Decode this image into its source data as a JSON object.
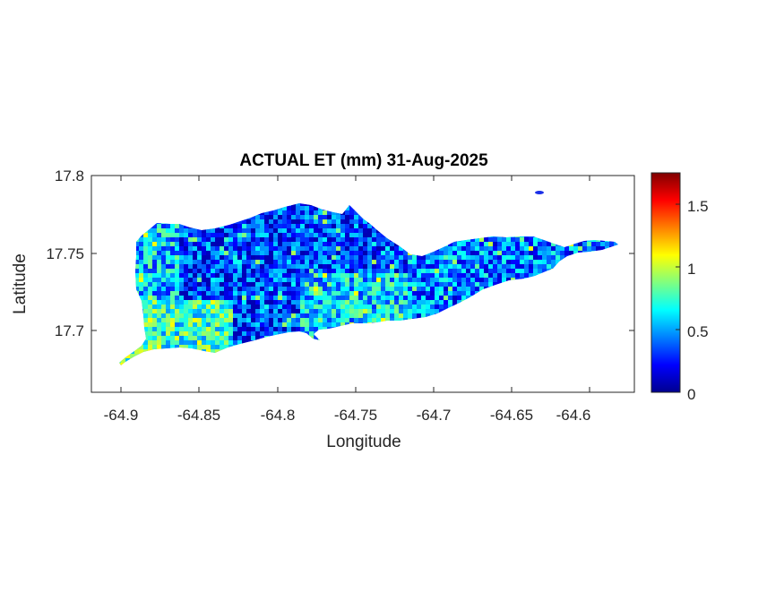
{
  "figure": {
    "title": "ACTUAL ET (mm) 31-Aug-2025",
    "xlabel": "Longitude",
    "ylabel": "Latitude"
  },
  "map": {
    "variable": "Actual evapotranspiration (mm)",
    "colormap": "jet",
    "lon_range": [
      -64.92,
      -64.555
    ],
    "lat_range": [
      17.66,
      17.8
    ],
    "xticks": [
      "-64.9",
      "-64.85",
      "-64.8",
      "-64.75",
      "-64.7",
      "-64.65",
      "-64.6"
    ],
    "yticks": [
      "17.8",
      "17.75",
      "17.7"
    ],
    "grid": false
  },
  "colorbar": {
    "range": [
      0,
      1.75
    ],
    "ticks": [
      "1.5",
      "1",
      "0.5",
      "0"
    ],
    "position": "right"
  }
}
